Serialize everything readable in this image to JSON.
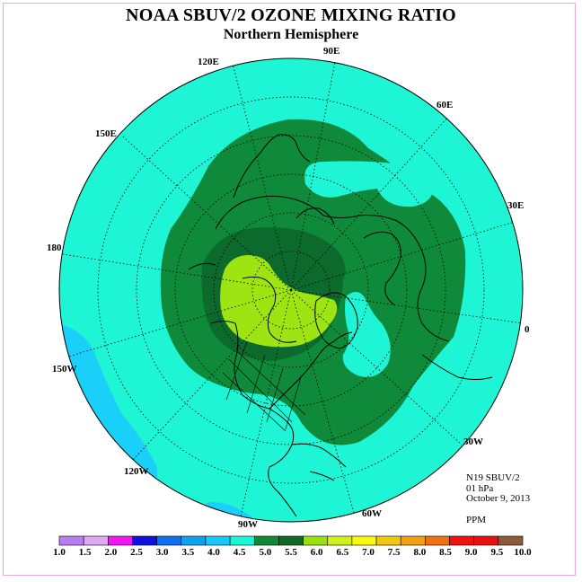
{
  "title": "NOAA SBUV/2 OZONE MIXING RATIO",
  "subtitle": "Northern Hemisphere",
  "longitude_labels": [
    "120E",
    "90E",
    "60E",
    "150E",
    "30E",
    "180",
    "0",
    "150W",
    "30W",
    "120W",
    "60W",
    "90W"
  ],
  "info": {
    "instrument": "N19 SBUV/2",
    "level": "01 hPa",
    "date": "October 9, 2013",
    "units": "PPM"
  },
  "colorbar": {
    "ticks": [
      "1.0",
      "1.5",
      "2.0",
      "2.5",
      "3.0",
      "3.5",
      "4.0",
      "4.5",
      "5.0",
      "5.5",
      "6.0",
      "6.5",
      "7.0",
      "7.5",
      "8.0",
      "8.5",
      "9.0",
      "9.5",
      "10.0"
    ],
    "colors": [
      "#b87ef0",
      "#e0a8f0",
      "#f018f0",
      "#1010e0",
      "#1070f0",
      "#10a0f0",
      "#18c8f8",
      "#18f8d8",
      "#108838",
      "#106828",
      "#98e010",
      "#d0f020",
      "#f8f810",
      "#f0c810",
      "#f0a010",
      "#f07010",
      "#f01010",
      "#e81010",
      "#8a5a3a"
    ]
  },
  "map_colors": {
    "background": "#1ef5d5",
    "light_blue": "#1ad0f8",
    "green": "#0e8a3a",
    "dark_green": "#0b6a2c",
    "yellow_green": "#9ee312"
  }
}
